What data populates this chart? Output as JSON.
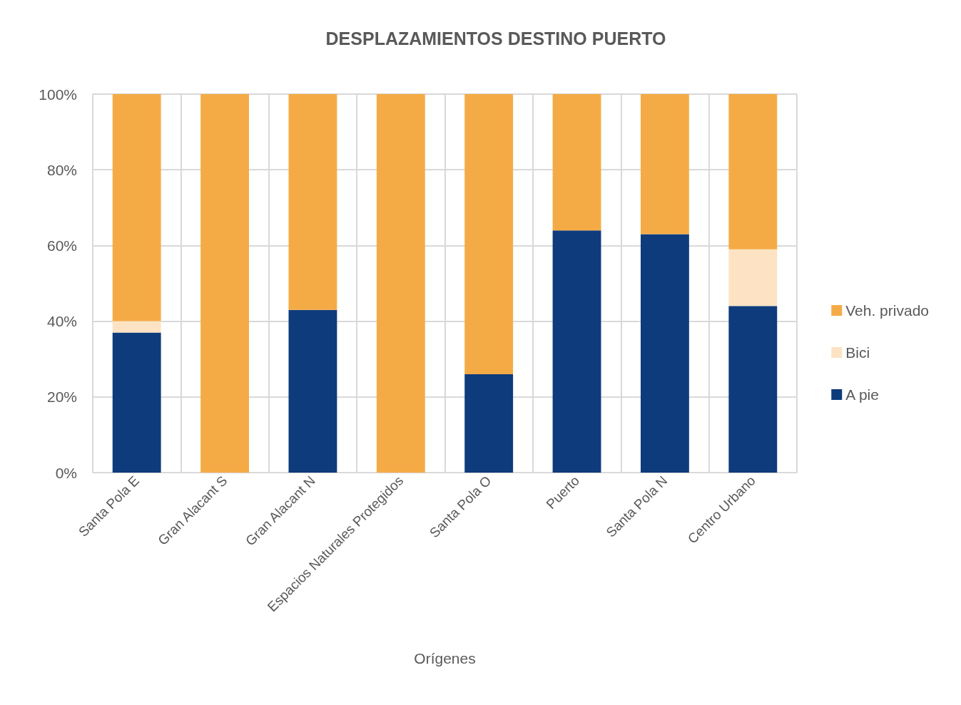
{
  "chart_data": {
    "type": "bar",
    "title": "DESPLAZAMIENTOS DESTINO PUERTO",
    "xlabel": "Orígenes",
    "categories": [
      "Santa Pola E",
      "Gran Alacant S",
      "Gran Alacant N",
      "Espacios Naturales Protegidos",
      "Santa Pola O",
      "Puerto",
      "Santa Pola N",
      "Centro Urbano"
    ],
    "series": [
      {
        "name": "A pie",
        "color": "#0e3b7c",
        "values": [
          37,
          0,
          43,
          0,
          26,
          64,
          63,
          44
        ]
      },
      {
        "name": "Bici",
        "color": "#fde3c3",
        "values": [
          3,
          0,
          0,
          0,
          0,
          0,
          0,
          15
        ]
      },
      {
        "name": "Veh. privado",
        "color": "#f5ab45",
        "values": [
          60,
          100,
          57,
          100,
          74,
          36,
          37,
          41
        ]
      }
    ],
    "stacked": true,
    "ylim": [
      0,
      100
    ],
    "yticks": [
      {
        "value": 0,
        "label": "0%"
      },
      {
        "value": 20,
        "label": "20%"
      },
      {
        "value": 40,
        "label": "40%"
      },
      {
        "value": 60,
        "label": "60%"
      },
      {
        "value": 80,
        "label": "80%"
      },
      {
        "value": 100,
        "label": "100%"
      }
    ],
    "grid": true,
    "legend": "right"
  }
}
